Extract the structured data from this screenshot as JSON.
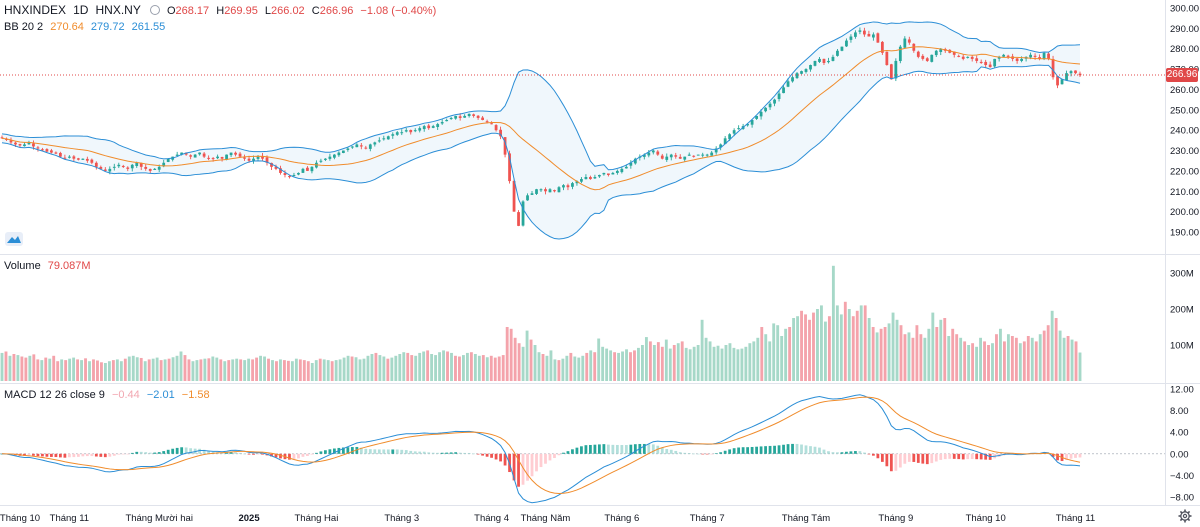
{
  "header": {
    "symbol": "HNXINDEX",
    "interval": "1D",
    "exchange": "HNX.NY",
    "open_label": "O",
    "open": "268.17",
    "high_label": "H",
    "high": "269.95",
    "low_label": "L",
    "low": "266.02",
    "close_label": "C",
    "close": "266.96",
    "change": "−1.08 (−0.40%)"
  },
  "bb_legend": {
    "name": "BB 20 2",
    "basis": "270.64",
    "upper": "279.72",
    "lower": "261.55"
  },
  "volume_legend": {
    "name": "Volume",
    "value": "79.087M"
  },
  "macd_legend": {
    "name": "MACD 12 26 close 9",
    "hist": "−0.44",
    "macd": "−2.01",
    "signal": "−1.58"
  },
  "last_price_tag": "266.96",
  "colors": {
    "up": "#26a69a",
    "down": "#ef5350",
    "vol_up": "#a6d8c8",
    "vol_down": "#f4a3ab",
    "bb_basis": "#f08c2c",
    "bb_band": "#2b8ed6",
    "macd_line": "#2b8ed6",
    "signal_line": "#f08c2c"
  },
  "chart_data": [
    {
      "type": "candlestick",
      "x_ticks": [
        "Tháng 10",
        "Tháng 11",
        "Tháng Mười hai",
        "2025",
        "Tháng Hai",
        "Tháng 3",
        "Tháng 4",
        "Tháng Năm",
        "Tháng 6",
        "Tháng 7",
        "Tháng Tám",
        "Tháng 9",
        "Tháng 10",
        "Tháng 11"
      ],
      "y_ticks": [
        "300.00",
        "290.00",
        "280.00",
        "270.00",
        "260.00",
        "250.00",
        "240.00",
        "230.00",
        "220.00",
        "210.00",
        "200.00",
        "190.00"
      ],
      "ylim": [
        185,
        300
      ],
      "close_series": [
        {
          "month": "Tháng 10",
          "values": [
            236,
            235.5,
            234,
            233,
            232.5,
            233,
            234,
            232,
            231,
            230.5,
            229.5,
            229,
            228.5,
            227,
            226
          ]
        },
        {
          "month": "Tháng 11",
          "values": [
            227,
            226,
            225.5,
            226,
            225,
            224,
            222,
            221,
            220,
            221,
            222,
            223,
            222,
            221,
            223,
            224,
            222,
            221,
            220,
            221
          ]
        },
        {
          "month": "Tháng Mười hai",
          "values": [
            222,
            224,
            226,
            227,
            228,
            229,
            228,
            227,
            228,
            229,
            227,
            226,
            226,
            227,
            226,
            228,
            229,
            228,
            227,
            226
          ]
        },
        {
          "month": "2025",
          "values": [
            225,
            226,
            227,
            226,
            224,
            222,
            221,
            219,
            218,
            217,
            218,
            219,
            221,
            220,
            222
          ]
        },
        {
          "month": "Tháng Hai",
          "values": [
            224,
            225,
            226,
            227,
            228,
            229,
            230,
            231,
            232,
            233,
            232,
            231,
            233,
            234,
            235,
            236,
            237,
            238,
            239
          ]
        },
        {
          "month": "Tháng 3",
          "values": [
            239,
            240,
            239,
            240,
            241,
            242,
            241,
            242,
            243,
            244,
            245,
            246,
            247,
            246,
            247,
            248,
            247,
            246,
            245,
            244
          ]
        },
        {
          "month": "Tháng 4",
          "values": [
            243,
            240,
            237,
            228,
            215,
            200,
            193,
            205,
            208,
            209,
            211,
            211
          ]
        },
        {
          "month": "Tháng Năm",
          "values": [
            210,
            211,
            210,
            212,
            213,
            212,
            214,
            215,
            216,
            217,
            216,
            217,
            218,
            219,
            218,
            219,
            220
          ]
        },
        {
          "month": "Tháng 6",
          "values": [
            221,
            222,
            224,
            226,
            227,
            228,
            229,
            230,
            228,
            226,
            227,
            228,
            227,
            226,
            227,
            228,
            227,
            228,
            228
          ]
        },
        {
          "month": "Tháng 7",
          "values": [
            228,
            229,
            231,
            233,
            236,
            238,
            240,
            241,
            242,
            243,
            245,
            247,
            249,
            251,
            253,
            255,
            258,
            261,
            264,
            266,
            268,
            269
          ]
        },
        {
          "month": "Tháng Tám",
          "values": [
            270,
            272,
            274,
            275,
            273,
            274,
            276,
            279,
            281,
            284,
            286,
            288,
            289,
            287,
            286,
            287,
            283,
            278,
            272,
            265
          ]
        },
        {
          "month": "Tháng 9",
          "values": [
            274,
            281,
            285,
            283,
            279,
            276,
            275,
            274,
            277,
            279,
            280,
            279,
            278,
            277,
            276,
            275,
            276,
            275,
            274,
            273
          ]
        },
        {
          "month": "Tháng 10",
          "values": [
            272,
            271,
            275,
            276,
            277,
            276,
            275,
            274,
            275,
            276,
            277,
            276,
            275,
            278,
            275,
            266,
            262,
            265,
            268,
            269
          ]
        },
        {
          "month": "Tháng 11",
          "values": [
            268,
            267
          ]
        }
      ]
    },
    {
      "type": "bar",
      "title": "Volume",
      "y_ticks": [
        "300M",
        "200M",
        "100M"
      ],
      "ylim": [
        0,
        340
      ],
      "note": "values in millions, one per session",
      "values": [
        78,
        82,
        70,
        75,
        72,
        68,
        65,
        70,
        74,
        60,
        58,
        65,
        62,
        70,
        55,
        60,
        58,
        62,
        65,
        60,
        58,
        63,
        55,
        60,
        57,
        52,
        50,
        55,
        58,
        60,
        55,
        62,
        68,
        70,
        66,
        64,
        55,
        60,
        62,
        65,
        58,
        60,
        62,
        66,
        70,
        82,
        72,
        60,
        55,
        58,
        60,
        62,
        63,
        68,
        65,
        60,
        55,
        58,
        60,
        62,
        60,
        58,
        62,
        60,
        65,
        70,
        68,
        62,
        58,
        55,
        60,
        58,
        56,
        55,
        62,
        60,
        58,
        55,
        50,
        58,
        62,
        60,
        58,
        55,
        58,
        60,
        65,
        70,
        68,
        66,
        60,
        62,
        70,
        75,
        78,
        72,
        68,
        62,
        65,
        70,
        75,
        80,
        78,
        72,
        70,
        78,
        82,
        85,
        75,
        72,
        80,
        85,
        82,
        78,
        70,
        68,
        72,
        78,
        80,
        75,
        70,
        72,
        66,
        70,
        65,
        68,
        72,
        150,
        145,
        120,
        105,
        95,
        140,
        115,
        100,
        80,
        75,
        70,
        85,
        60,
        58,
        62,
        70,
        78,
        68,
        65,
        70,
        78,
        85,
        80,
        118,
        95,
        90,
        85,
        80,
        78,
        82,
        88,
        80,
        85,
        92,
        100,
        122,
        110,
        100,
        108,
        95,
        115,
        90,
        100,
        105,
        110,
        92,
        88,
        95,
        100,
        170,
        120,
        110,
        95,
        98,
        90,
        100,
        105,
        92,
        88,
        90,
        95,
        105,
        110,
        120,
        150,
        130,
        110,
        160,
        155,
        125,
        145,
        150,
        175,
        180,
        195,
        185,
        170,
        190,
        200,
        210,
        165,
        180,
        320,
        210,
        185,
        220,
        200,
        180,
        195,
        210,
        210,
        175,
        150,
        135,
        145,
        150,
        160,
        190,
        170,
        155,
        130,
        135,
        120,
        155,
        130,
        120,
        145,
        190,
        150,
        170,
        175,
        125,
        145,
        130,
        120,
        110,
        100,
        105,
        95,
        120,
        110,
        100,
        105,
        130,
        145,
        110,
        130,
        125,
        120,
        105,
        110,
        125,
        120,
        110,
        130,
        140,
        155,
        195,
        175,
        140,
        120,
        125,
        115,
        110,
        79.087
      ],
      "colors_up": [
        true,
        false,
        true,
        false,
        true,
        false,
        false,
        true,
        false,
        false,
        true,
        false,
        true,
        false,
        false,
        true,
        false,
        true,
        true,
        false,
        true,
        false,
        true,
        false,
        false,
        false,
        true,
        true,
        false,
        true,
        true,
        false,
        true,
        true,
        true,
        false,
        true,
        false,
        true,
        true,
        false,
        true,
        false,
        true,
        true,
        true,
        false,
        false,
        true,
        true,
        false,
        true,
        false,
        true,
        true,
        false,
        true,
        false,
        true,
        true,
        false,
        true,
        true,
        false,
        false,
        true,
        true,
        false,
        true,
        false,
        true,
        false,
        false,
        true,
        true,
        false,
        false,
        false,
        true,
        true,
        false,
        true,
        true,
        false,
        true,
        true,
        true,
        true,
        false,
        true,
        true,
        true,
        true,
        true,
        false,
        true,
        true,
        false,
        true,
        true,
        true,
        true,
        false,
        false,
        true,
        true,
        true,
        false,
        true,
        true,
        true,
        true,
        false,
        true,
        false,
        false,
        true,
        true,
        false,
        true,
        true,
        false,
        true,
        false,
        false,
        false,
        false,
        false,
        false,
        false,
        false,
        true,
        true,
        false,
        true,
        true,
        false,
        true,
        true,
        true,
        false,
        true,
        true,
        false,
        true,
        true,
        true,
        false,
        true,
        false,
        true,
        true,
        true,
        true,
        false,
        true,
        true,
        true,
        false,
        false,
        true,
        true,
        true,
        false,
        true,
        false,
        false,
        true,
        true,
        false,
        true,
        false,
        true,
        true,
        true,
        true,
        true,
        true,
        true,
        true,
        true,
        true,
        true,
        true,
        true,
        true,
        true,
        true,
        true,
        true,
        true,
        false,
        true,
        true,
        true,
        true,
        true,
        true,
        false,
        true,
        true,
        false,
        false,
        false,
        false,
        true,
        true,
        true,
        false,
        true,
        true,
        true,
        false,
        true,
        false,
        false,
        true,
        false,
        true,
        false,
        true,
        false,
        false,
        true,
        true,
        true,
        false,
        false,
        true,
        false,
        false,
        false,
        true,
        true,
        true,
        false,
        true,
        false,
        true,
        false,
        false,
        true,
        false,
        true,
        false,
        true,
        true,
        false,
        false
      ]
    },
    {
      "type": "line",
      "title": "MACD 12 26 close 9",
      "y_ticks": [
        "12.00",
        "8.00",
        "4.00",
        "0.00",
        "−4.00",
        "−8.00"
      ],
      "ylim": [
        -10,
        13
      ]
    }
  ]
}
